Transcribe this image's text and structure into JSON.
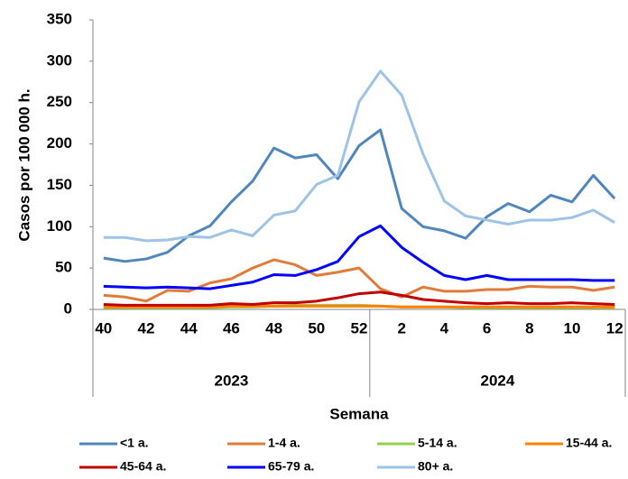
{
  "chart_data": {
    "type": "line",
    "y_label": "Casos por 100 000 h.",
    "x_label": "Semana",
    "categories": [
      "40",
      null,
      "42",
      null,
      "44",
      null,
      "46",
      null,
      "48",
      null,
      "50",
      null,
      "52",
      null,
      "2",
      null,
      "4",
      null,
      "6",
      null,
      "8",
      null,
      "10",
      null,
      "12"
    ],
    "groups": [
      "2023",
      "2024"
    ],
    "ylim": [
      0,
      350
    ],
    "yticks": [
      0,
      50,
      100,
      150,
      200,
      250,
      300,
      350
    ],
    "grid": false,
    "legend": "bottom",
    "series": [
      {
        "name": "<1 a.",
        "color": "#4f86bb",
        "values": [
          62,
          58,
          61,
          69,
          89,
          101,
          130,
          155,
          195,
          183,
          187,
          158,
          198,
          217,
          122,
          100,
          95,
          86,
          112,
          128,
          118,
          138,
          130,
          162,
          134
        ]
      },
      {
        "name": "1-4 a.",
        "color": "#e07b39",
        "values": [
          17,
          15,
          10,
          23,
          22,
          32,
          37,
          50,
          60,
          54,
          41,
          45,
          50,
          25,
          15,
          27,
          22,
          22,
          24,
          24,
          28,
          27,
          27,
          23,
          27
        ]
      },
      {
        "name": "5-14 a.",
        "color": "#92d050",
        "values": [
          2,
          2,
          2,
          2,
          2,
          2,
          3,
          3,
          4,
          5,
          5,
          5,
          5,
          4,
          3,
          3,
          3,
          2,
          2,
          2,
          2,
          2,
          2,
          2,
          2
        ]
      },
      {
        "name": "15-44 a.",
        "color": "#ff8000",
        "values": [
          3,
          3,
          3,
          3,
          3,
          3,
          4,
          4,
          4,
          4,
          4,
          4,
          4,
          4,
          3,
          3,
          3,
          3,
          3,
          3,
          3,
          3,
          3,
          3,
          3
        ]
      },
      {
        "name": "45-64 a.",
        "color": "#c00000",
        "values": [
          6,
          5,
          5,
          5,
          5,
          5,
          7,
          6,
          8,
          8,
          10,
          14,
          19,
          21,
          17,
          12,
          10,
          8,
          7,
          8,
          7,
          7,
          8,
          7,
          6
        ]
      },
      {
        "name": "65-79 a.",
        "color": "#0000ff",
        "values": [
          28,
          27,
          26,
          27,
          26,
          25,
          29,
          33,
          42,
          41,
          48,
          58,
          88,
          101,
          75,
          57,
          41,
          36,
          41,
          36,
          36,
          36,
          36,
          35,
          35
        ]
      },
      {
        "name": "80+ a.",
        "color": "#9dc3e6",
        "values": [
          87,
          87,
          83,
          84,
          88,
          87,
          96,
          89,
          114,
          119,
          151,
          162,
          251,
          288,
          259,
          188,
          131,
          113,
          108,
          103,
          108,
          108,
          111,
          120,
          105
        ]
      }
    ]
  }
}
